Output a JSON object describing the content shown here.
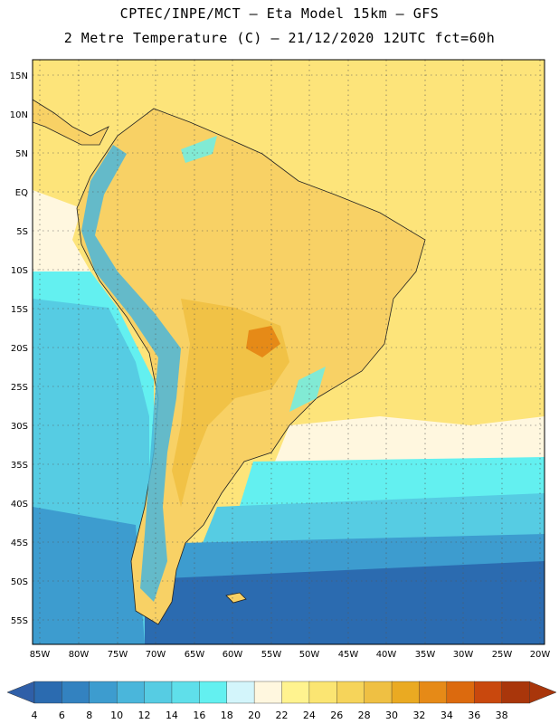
{
  "header": {
    "line1": "CPTEC/INPE/MCT –  Eta Model 15km – GFS",
    "line2": "2 Metre Temperature (C) – 21/12/2020 12UTC fct=60h"
  },
  "axes": {
    "lat_labels": [
      "15N",
      "10N",
      "5N",
      "EQ",
      "5S",
      "10S",
      "15S",
      "20S",
      "25S",
      "30S",
      "35S",
      "40S",
      "45S",
      "50S",
      "55S"
    ],
    "lon_labels": [
      "85W",
      "80W",
      "75W",
      "70W",
      "65W",
      "60W",
      "55W",
      "50W",
      "45W",
      "40W",
      "35W",
      "30W",
      "25W",
      "20W"
    ]
  },
  "colorbar": {
    "values": [
      "4",
      "6",
      "8",
      "10",
      "12",
      "14",
      "16",
      "18",
      "20",
      "22",
      "24",
      "26",
      "28",
      "30",
      "32",
      "34",
      "36",
      "38"
    ],
    "colors": [
      "#2b6bb0",
      "#3382c0",
      "#3d9ccf",
      "#4ab6db",
      "#56cce3",
      "#5fdfea",
      "#63f0f0",
      "#d3f5fb",
      "#fff7df",
      "#fff38f",
      "#fbe572",
      "#f6d45a",
      "#efc043",
      "#eaaa22",
      "#e68a17",
      "#dc6a0e",
      "#c9480d",
      "#a9360b"
    ],
    "left_arrow_color": "#2f5fa8",
    "right_arrow_color": "#a9360b"
  },
  "map_colors": {
    "ocean_tropical": "#fde47a",
    "land_warm": "#f8d165",
    "ocean_cool": "#5fdfea",
    "ocean_cold": "#3d9ccf",
    "ocean_deep": "#2b6bb0",
    "hot_spot": "#e68a17",
    "andes": "#4ab6db"
  }
}
